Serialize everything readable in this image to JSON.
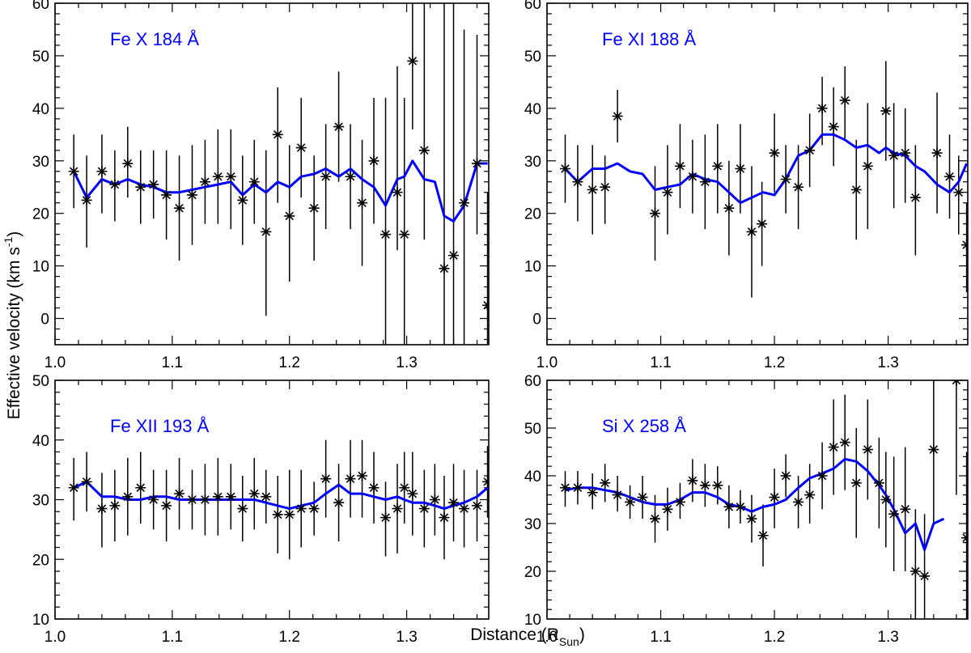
{
  "figure": {
    "ylabel_main": "Effective velocity  (km s",
    "ylabel_sup": "-1",
    "ylabel_close": ")",
    "xlabel_main": "Distance (R",
    "xlabel_sub": "Sun",
    "xlabel_close": ")"
  },
  "colors": {
    "model": "#0000ff",
    "data": "#000000",
    "frame": "#000000"
  },
  "chart_data": [
    {
      "type": "line",
      "title": "Fe X 184 Å",
      "xlim": [
        1.0,
        1.37
      ],
      "ylim": [
        -5,
        60
      ],
      "xticks": [
        1.0,
        1.1,
        1.2,
        1.3
      ],
      "xtick_labels": [
        "1.0",
        "1.1",
        "1.2",
        "1.3"
      ],
      "yticks": [
        0,
        10,
        20,
        30,
        40,
        50,
        60
      ],
      "ytick_labels": [
        "0",
        "10",
        "20",
        "30",
        "40",
        "50",
        "60"
      ],
      "obs": {
        "x": [
          1.016,
          1.027,
          1.04,
          1.051,
          1.062,
          1.073,
          1.084,
          1.095,
          1.106,
          1.117,
          1.128,
          1.139,
          1.15,
          1.16,
          1.17,
          1.18,
          1.19,
          1.2,
          1.21,
          1.221,
          1.231,
          1.242,
          1.252,
          1.262,
          1.272,
          1.282,
          1.292,
          1.298,
          1.305,
          1.315,
          1.332,
          1.34,
          1.349,
          1.36,
          1.369
        ],
        "y": [
          28,
          22.5,
          28,
          25.5,
          29.5,
          25,
          25.5,
          23.5,
          21,
          23.5,
          26,
          27,
          27,
          22.5,
          26,
          16.5,
          35,
          19.5,
          32.5,
          21,
          27,
          36.5,
          27,
          22,
          30,
          16,
          24,
          16,
          49,
          32,
          9.5,
          12,
          22,
          29.5,
          2.5
        ],
        "err_lo": [
          21,
          13.5,
          20,
          18.5,
          23,
          18,
          19,
          15,
          11,
          14,
          18,
          18,
          17,
          14,
          18,
          0.5,
          22,
          7,
          23,
          11,
          17,
          26,
          17,
          10,
          18,
          -7,
          13,
          -7,
          36,
          15,
          -7,
          -7,
          -7,
          16,
          -7
        ],
        "err_hi": [
          35,
          31,
          35,
          32,
          36.5,
          32,
          32,
          32,
          31,
          33,
          34,
          36,
          36,
          31,
          34,
          32,
          44,
          33,
          42,
          31,
          37,
          47,
          37,
          34,
          42,
          42,
          48,
          42,
          61,
          61,
          61,
          61,
          55,
          54,
          24
        ]
      },
      "model": {
        "x": [
          1.016,
          1.027,
          1.04,
          1.051,
          1.062,
          1.073,
          1.084,
          1.095,
          1.106,
          1.117,
          1.128,
          1.139,
          1.15,
          1.16,
          1.17,
          1.18,
          1.19,
          1.2,
          1.21,
          1.221,
          1.231,
          1.242,
          1.252,
          1.262,
          1.272,
          1.282,
          1.292,
          1.298,
          1.305,
          1.315,
          1.324,
          1.332,
          1.34,
          1.349,
          1.36,
          1.369
        ],
        "y": [
          28,
          23,
          26.5,
          25.5,
          26.5,
          25.5,
          25,
          24,
          24,
          24.5,
          25,
          25.5,
          26,
          23.5,
          25.5,
          24,
          26,
          25,
          27,
          27.5,
          28.5,
          27,
          28.5,
          26.5,
          25,
          21.5,
          26.5,
          27,
          30,
          26.5,
          26,
          19.5,
          18.5,
          21.5,
          29.5,
          29.5
        ]
      }
    },
    {
      "type": "line",
      "title": "Fe XI 188 Å",
      "xlim": [
        1.0,
        1.37
      ],
      "ylim": [
        -5,
        60
      ],
      "xticks": [
        1.0,
        1.1,
        1.2,
        1.3
      ],
      "xtick_labels": [
        "1.0",
        "1.1",
        "1.2",
        "1.3"
      ],
      "yticks": [
        0,
        10,
        20,
        30,
        40,
        50,
        60
      ],
      "ytick_labels": [
        "0",
        "10",
        "20",
        "30",
        "40",
        "50",
        "60"
      ],
      "obs": {
        "x": [
          1.016,
          1.027,
          1.04,
          1.051,
          1.062,
          1.095,
          1.106,
          1.117,
          1.128,
          1.139,
          1.15,
          1.16,
          1.17,
          1.18,
          1.189,
          1.2,
          1.21,
          1.221,
          1.231,
          1.242,
          1.252,
          1.262,
          1.272,
          1.282,
          1.298,
          1.305,
          1.315,
          1.324,
          1.343,
          1.354,
          1.362,
          1.369
        ],
        "y": [
          28.5,
          26,
          24.5,
          25,
          38.5,
          20,
          24,
          29,
          27,
          26,
          29,
          21,
          28.5,
          16.5,
          18,
          31.5,
          26.5,
          25,
          32,
          40,
          36.5,
          41.5,
          24.5,
          29,
          39.5,
          31,
          31.5,
          23,
          31.5,
          27,
          24,
          14
        ],
        "err_lo": [
          22,
          18.5,
          16,
          18,
          33.5,
          11,
          16,
          21,
          20,
          17,
          20,
          12,
          20,
          4,
          10,
          24,
          20,
          17,
          25,
          33,
          29,
          34,
          15,
          17,
          30,
          21,
          22,
          12,
          20,
          19,
          16,
          5
        ],
        "err_hi": [
          35,
          33,
          33,
          31,
          43.5,
          29,
          33,
          37,
          34,
          35,
          37,
          30,
          37,
          29,
          26,
          39,
          33,
          33,
          39,
          46,
          44,
          48,
          34,
          41,
          49,
          41,
          40,
          33,
          43,
          35,
          31,
          22
        ]
      },
      "model": {
        "x": [
          1.016,
          1.027,
          1.04,
          1.051,
          1.062,
          1.073,
          1.084,
          1.095,
          1.106,
          1.117,
          1.128,
          1.139,
          1.15,
          1.16,
          1.17,
          1.18,
          1.19,
          1.2,
          1.21,
          1.221,
          1.231,
          1.242,
          1.252,
          1.262,
          1.272,
          1.282,
          1.292,
          1.298,
          1.305,
          1.315,
          1.324,
          1.332,
          1.343,
          1.354,
          1.362,
          1.369
        ],
        "y": [
          28.5,
          26,
          28.5,
          28.5,
          29.5,
          28,
          27.5,
          24.5,
          25,
          25.5,
          27.5,
          26.5,
          26,
          24,
          22,
          23,
          24,
          23.5,
          26.5,
          31,
          32,
          35,
          35,
          34,
          32.5,
          33,
          31.5,
          32.5,
          31.5,
          31,
          29,
          28,
          25.5,
          24,
          26,
          29.5
        ]
      }
    },
    {
      "type": "line",
      "title": "Fe XII 193 Å",
      "xlim": [
        1.0,
        1.37
      ],
      "ylim": [
        10,
        50
      ],
      "xticks": [
        1.0,
        1.1,
        1.2,
        1.3
      ],
      "xtick_labels": [
        "1.0",
        "1.1",
        "1.2",
        "1.3"
      ],
      "yticks": [
        10,
        20,
        30,
        40,
        50
      ],
      "ytick_labels": [
        "10",
        "20",
        "30",
        "40",
        "50"
      ],
      "obs": {
        "x": [
          1.016,
          1.027,
          1.04,
          1.051,
          1.062,
          1.073,
          1.084,
          1.095,
          1.106,
          1.117,
          1.128,
          1.139,
          1.15,
          1.16,
          1.17,
          1.18,
          1.19,
          1.2,
          1.21,
          1.221,
          1.231,
          1.242,
          1.252,
          1.262,
          1.272,
          1.282,
          1.292,
          1.298,
          1.305,
          1.315,
          1.324,
          1.332,
          1.34,
          1.349,
          1.36,
          1.369
        ],
        "y": [
          32,
          33,
          28.5,
          29,
          30.5,
          32,
          30,
          29,
          31,
          30,
          30,
          30.5,
          30.5,
          28.5,
          31,
          30.5,
          27.5,
          27.5,
          28.5,
          28.5,
          33.5,
          29.5,
          33.5,
          34,
          32,
          27,
          28.5,
          32,
          31,
          28.5,
          30,
          27,
          29.5,
          28.5,
          29,
          33
        ],
        "err_lo": [
          26.5,
          28,
          22,
          23,
          24,
          26,
          25,
          23,
          25,
          25,
          24,
          24,
          25,
          23,
          25,
          26,
          21,
          20,
          22,
          24,
          27,
          23,
          27,
          27,
          26,
          20.5,
          21,
          26,
          24,
          22,
          24,
          20,
          23,
          22,
          23,
          27
        ],
        "err_hi": [
          37,
          38,
          34.5,
          35,
          37,
          38,
          35,
          35,
          37,
          35,
          36,
          37,
          36,
          34,
          37,
          35,
          34,
          35,
          35,
          33,
          40,
          36,
          40,
          40,
          38,
          33,
          36,
          38,
          38,
          35,
          36,
          34,
          36,
          35,
          35,
          39
        ]
      },
      "model": {
        "x": [
          1.016,
          1.027,
          1.04,
          1.051,
          1.062,
          1.073,
          1.084,
          1.095,
          1.106,
          1.117,
          1.128,
          1.139,
          1.15,
          1.16,
          1.17,
          1.18,
          1.19,
          1.2,
          1.21,
          1.221,
          1.231,
          1.242,
          1.252,
          1.262,
          1.272,
          1.282,
          1.292,
          1.298,
          1.305,
          1.315,
          1.324,
          1.332,
          1.34,
          1.349,
          1.36,
          1.369
        ],
        "y": [
          32,
          33,
          30.5,
          30.5,
          30,
          30,
          30.5,
          30.5,
          30,
          30,
          30,
          30,
          30,
          30,
          30,
          29.5,
          29,
          28.5,
          29,
          29.5,
          31,
          32.5,
          31,
          31,
          30.5,
          30,
          30.5,
          30,
          29.5,
          29.5,
          29,
          28.5,
          29,
          29.5,
          30.5,
          32
        ]
      }
    },
    {
      "type": "line",
      "title": "Si X 258 Å",
      "xlim": [
        1.0,
        1.37
      ],
      "ylim": [
        10,
        60
      ],
      "xticks": [
        1.0,
        1.1,
        1.2,
        1.3
      ],
      "xtick_labels": [
        "1.0",
        "1.1",
        "1.2",
        "1.3"
      ],
      "yticks": [
        10,
        20,
        30,
        40,
        50,
        60
      ],
      "ytick_labels": [
        "10",
        "20",
        "30",
        "40",
        "50",
        "60"
      ],
      "obs": {
        "x": [
          1.016,
          1.027,
          1.04,
          1.051,
          1.062,
          1.073,
          1.084,
          1.095,
          1.106,
          1.117,
          1.128,
          1.139,
          1.15,
          1.16,
          1.17,
          1.18,
          1.19,
          1.2,
          1.21,
          1.221,
          1.231,
          1.242,
          1.252,
          1.262,
          1.272,
          1.282,
          1.292,
          1.298,
          1.305,
          1.315,
          1.324,
          1.332,
          1.34,
          1.36,
          1.369
        ],
        "y": [
          37.5,
          37.5,
          36.5,
          38.5,
          36,
          34.5,
          35.5,
          31,
          33,
          34.5,
          39,
          38,
          38,
          33.5,
          33.5,
          31,
          27.5,
          35.5,
          40,
          34.5,
          36,
          40,
          46,
          47,
          38.5,
          45.5,
          38.5,
          35,
          32,
          33,
          20,
          19,
          45.5,
          60,
          27
        ],
        "err_lo": [
          33.5,
          34,
          33,
          34.5,
          32.5,
          31,
          31,
          26,
          28.5,
          31,
          34.5,
          33.5,
          34,
          29,
          30,
          26,
          21,
          29,
          35.5,
          29,
          30,
          33,
          36,
          37,
          27,
          35,
          29,
          25,
          20,
          20,
          7,
          7,
          30,
          36,
          9
        ],
        "err_hi": [
          41,
          41,
          40.5,
          42.5,
          40,
          38,
          40,
          36,
          37.5,
          38.5,
          43.5,
          42.5,
          42,
          38,
          37,
          36,
          34,
          41.5,
          44.5,
          40,
          42.5,
          47,
          56,
          57,
          50,
          56,
          48,
          45,
          44,
          46,
          33,
          32,
          61,
          61,
          45
        ]
      },
      "model": {
        "x": [
          1.016,
          1.027,
          1.04,
          1.051,
          1.062,
          1.073,
          1.084,
          1.095,
          1.106,
          1.117,
          1.128,
          1.139,
          1.15,
          1.16,
          1.17,
          1.18,
          1.19,
          1.2,
          1.21,
          1.221,
          1.231,
          1.242,
          1.252,
          1.262,
          1.272,
          1.282,
          1.292,
          1.298,
          1.305,
          1.315,
          1.324,
          1.332,
          1.34,
          1.349
        ],
        "y": [
          37,
          37.5,
          37.5,
          37,
          36.5,
          35.5,
          34.5,
          34,
          34,
          35,
          36.5,
          36.5,
          35.5,
          34,
          33.5,
          32.5,
          33.5,
          34,
          35,
          37.5,
          39.5,
          40.5,
          41.5,
          43.5,
          43,
          41,
          38,
          36,
          33,
          28,
          30,
          24.5,
          30,
          31
        ]
      }
    }
  ]
}
